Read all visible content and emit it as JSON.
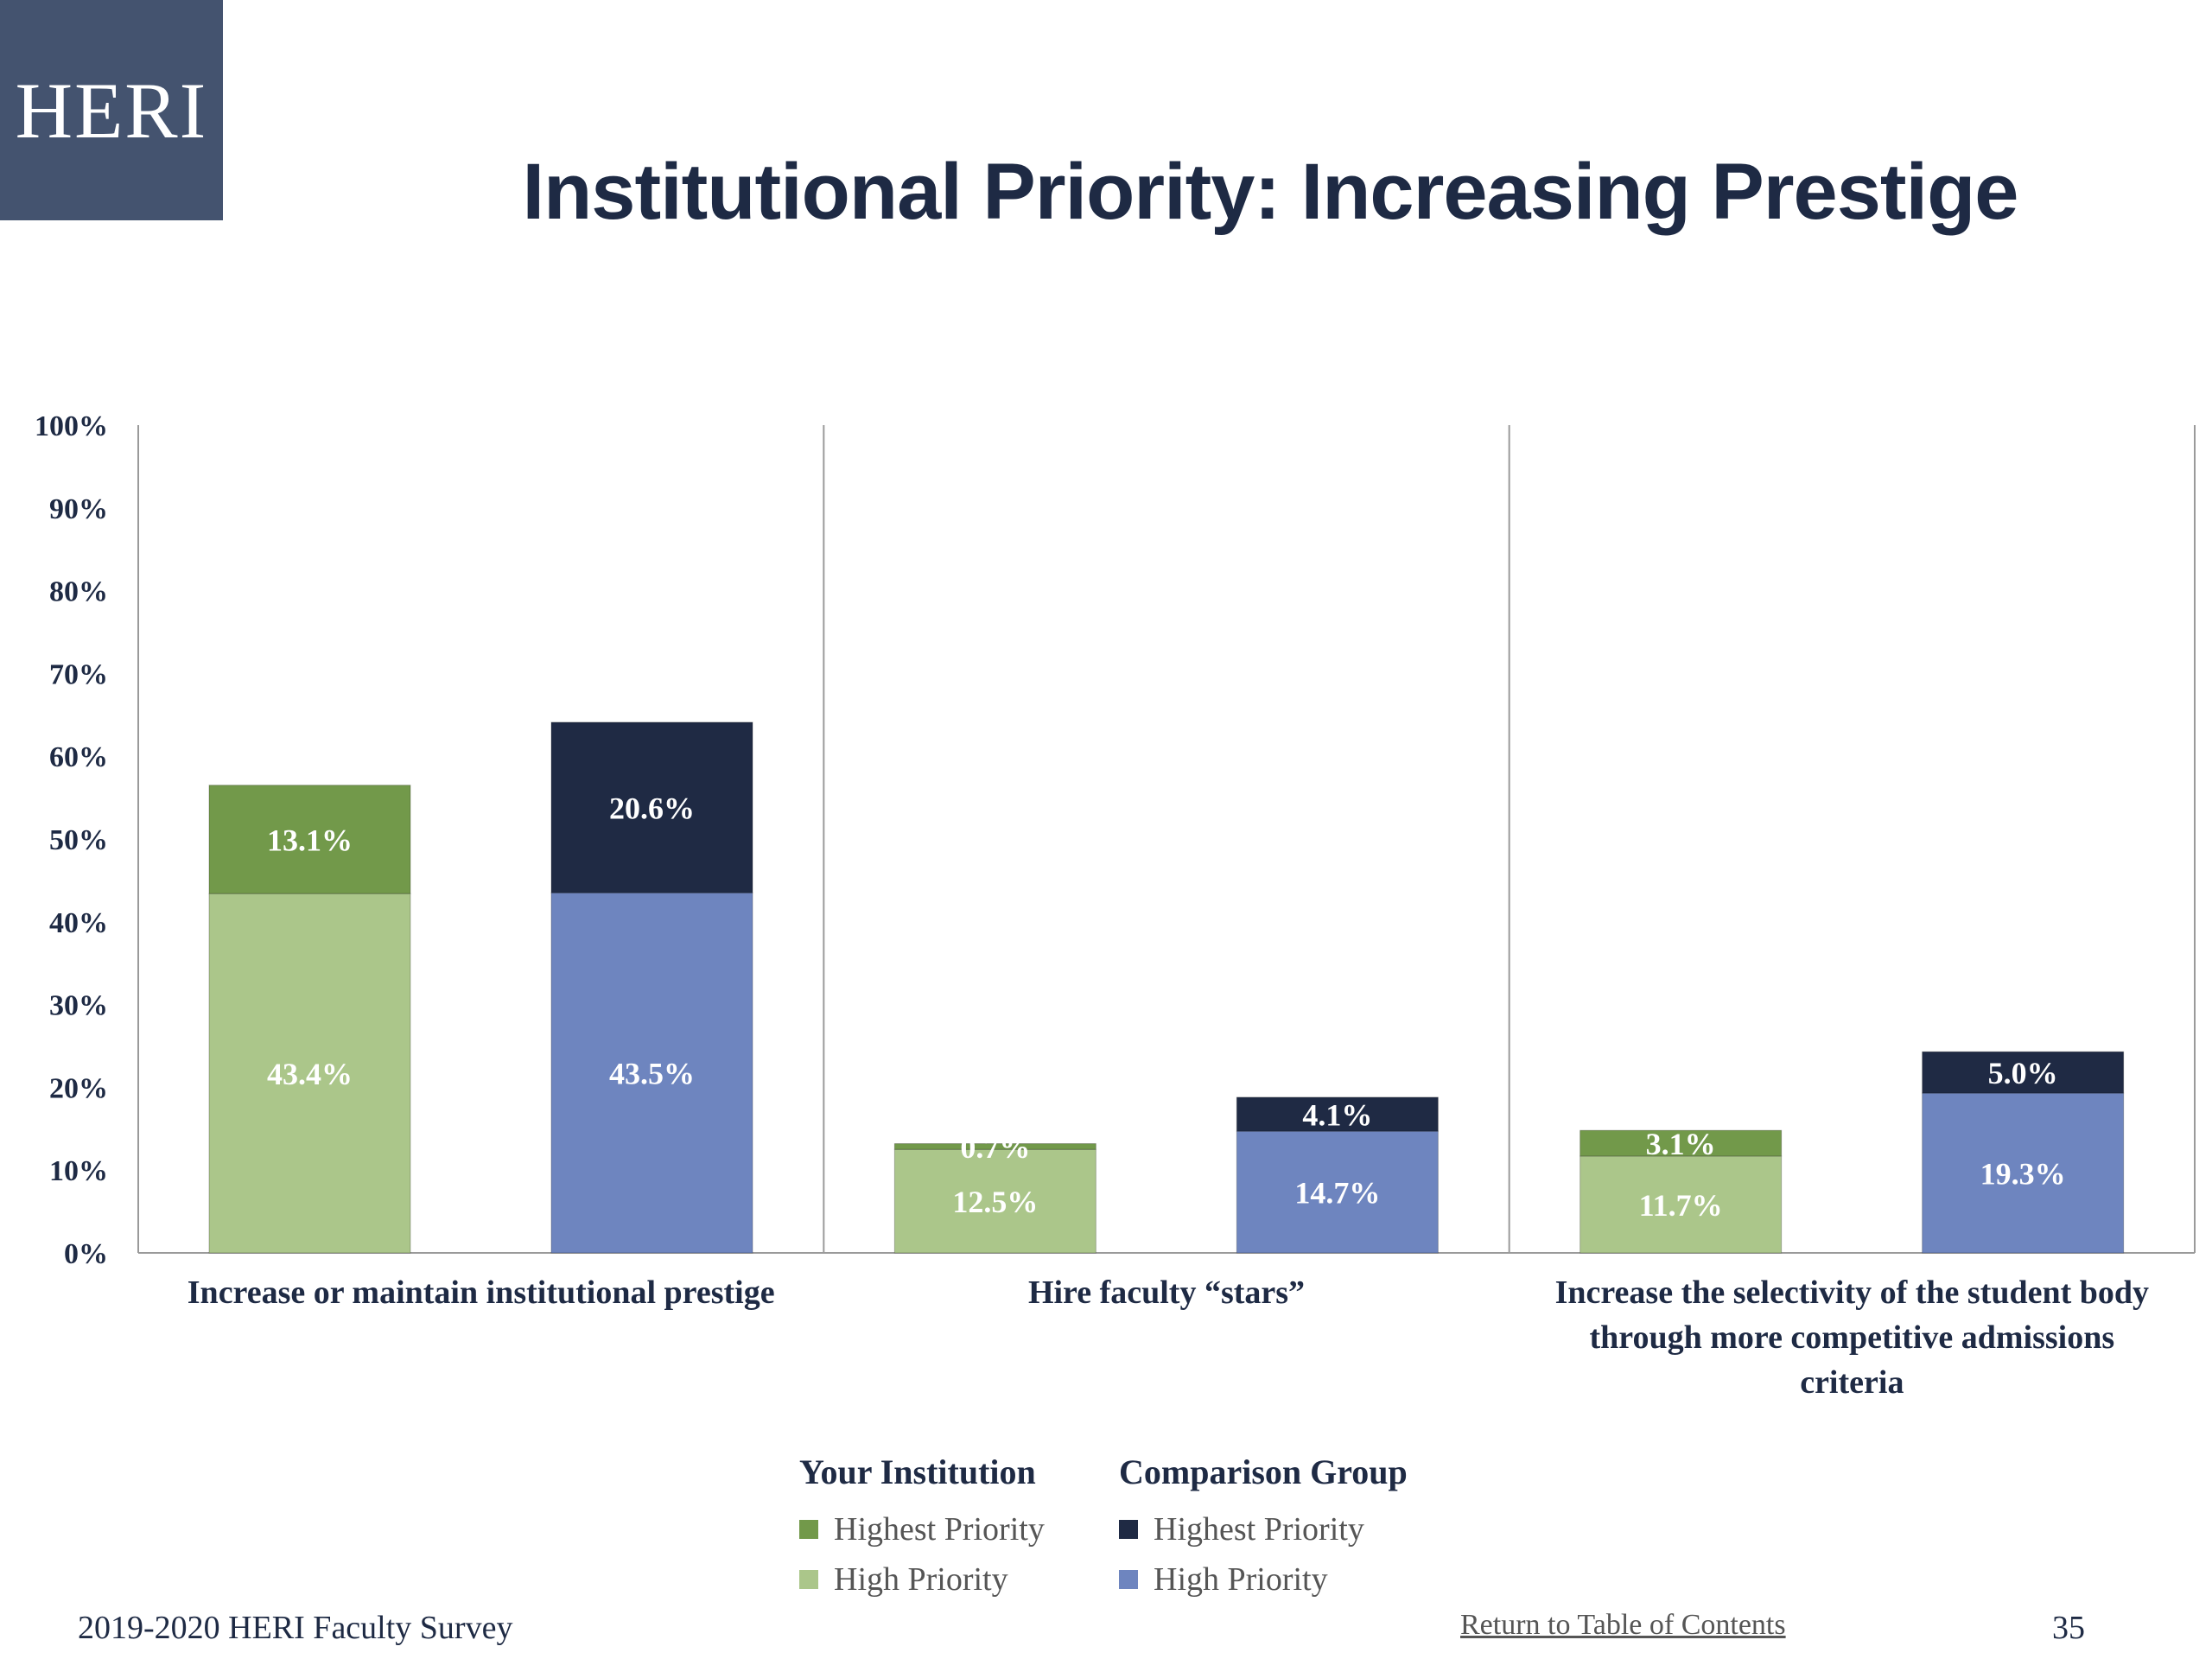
{
  "logo": "HERI",
  "title": "Institutional Priority: Increasing Prestige",
  "colors": {
    "inst_highest": "#72994a",
    "inst_high": "#abc68a",
    "comp_highest": "#1f2a44",
    "comp_high": "#6e85bf"
  },
  "chart_data": {
    "type": "bar",
    "stacked": true,
    "categories": [
      "Increase or maintain institutional prestige",
      "Hire faculty “stars”",
      "Increase the selectivity of the student body through more competitive admissions criteria"
    ],
    "category_label_lines": [
      [
        "Increase or maintain institutional prestige"
      ],
      [
        "Hire faculty “stars”"
      ],
      [
        "Increase the selectivity of the student body",
        "through more competitive admissions",
        "criteria"
      ]
    ],
    "groups": [
      {
        "name": "Your Institution",
        "series": [
          {
            "name": "High Priority",
            "values": [
              43.4,
              12.5,
              11.7
            ],
            "labels": [
              "43.4%",
              "12.5%",
              "11.7%"
            ],
            "color": "#abc68a"
          },
          {
            "name": "Highest Priority",
            "values": [
              13.1,
              0.7,
              3.1
            ],
            "labels": [
              "13.1%",
              "0.7%",
              "3.1%"
            ],
            "color": "#72994a"
          }
        ]
      },
      {
        "name": "Comparison Group",
        "series": [
          {
            "name": "High Priority",
            "values": [
              43.5,
              14.7,
              19.3
            ],
            "labels": [
              "43.5%",
              "14.7%",
              "19.3%"
            ],
            "color": "#6e85bf"
          },
          {
            "name": "Highest Priority",
            "values": [
              20.6,
              4.1,
              5.0
            ],
            "labels": [
              "20.6%",
              "4.1%",
              "5.0%"
            ],
            "color": "#1f2a44"
          }
        ]
      }
    ],
    "y_ticks": [
      "0%",
      "10%",
      "20%",
      "30%",
      "40%",
      "50%",
      "60%",
      "70%",
      "80%",
      "90%",
      "100%"
    ],
    "ylim": [
      0,
      100
    ],
    "grid": false
  },
  "legend": {
    "institution_title": "Your Institution",
    "institution_highest": "Highest Priority",
    "institution_high": "High Priority",
    "comparison_title": "Comparison Group",
    "comparison_highest": "Highest Priority",
    "comparison_high": "High Priority"
  },
  "footer": {
    "survey": "2019-2020 HERI Faculty Survey",
    "toc_link": "Return to Table of Contents",
    "page_number": "35"
  }
}
